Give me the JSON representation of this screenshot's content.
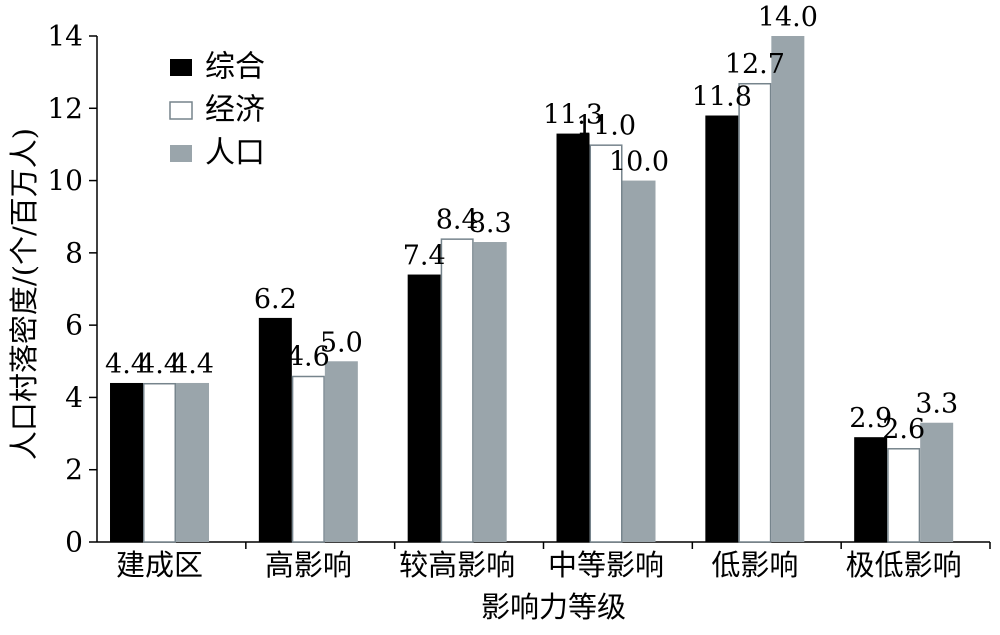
{
  "chart_data": {
    "type": "bar",
    "xlabel": "影响力等级",
    "ylabel": "人口村落密度/(个/百万人)",
    "ylim": [
      0,
      14
    ],
    "yticks": [
      0,
      2,
      4,
      6,
      8,
      10,
      12,
      14
    ],
    "grid": false,
    "legend_position": "top-left",
    "categories": [
      "建成区",
      "高影响",
      "较高影响",
      "中等影响",
      "低影响",
      "极低影响"
    ],
    "series": [
      {
        "name": "综合",
        "values": [
          4.4,
          6.2,
          7.4,
          11.3,
          11.8,
          2.9
        ],
        "labels": [
          "4.4",
          "6.2",
          "7.4",
          "11.3",
          "11.8",
          "2.9"
        ],
        "fill": "#000000",
        "stroke": "#000000"
      },
      {
        "name": "经济",
        "values": [
          4.4,
          4.6,
          8.4,
          11.0,
          12.7,
          2.6
        ],
        "labels": [
          "4.4",
          "4.6",
          "8.4",
          "11.0",
          "12.7",
          "2.6"
        ],
        "fill": "#ffffff",
        "stroke": "#76848c"
      },
      {
        "name": "人口",
        "values": [
          4.4,
          5.0,
          8.3,
          10.0,
          14.0,
          3.3
        ],
        "labels": [
          "4.4",
          "5.0",
          "8.3",
          "10.0",
          "14.0",
          "3.3"
        ],
        "fill": "#9aa5ab",
        "stroke": "#9aa5ab"
      }
    ]
  }
}
